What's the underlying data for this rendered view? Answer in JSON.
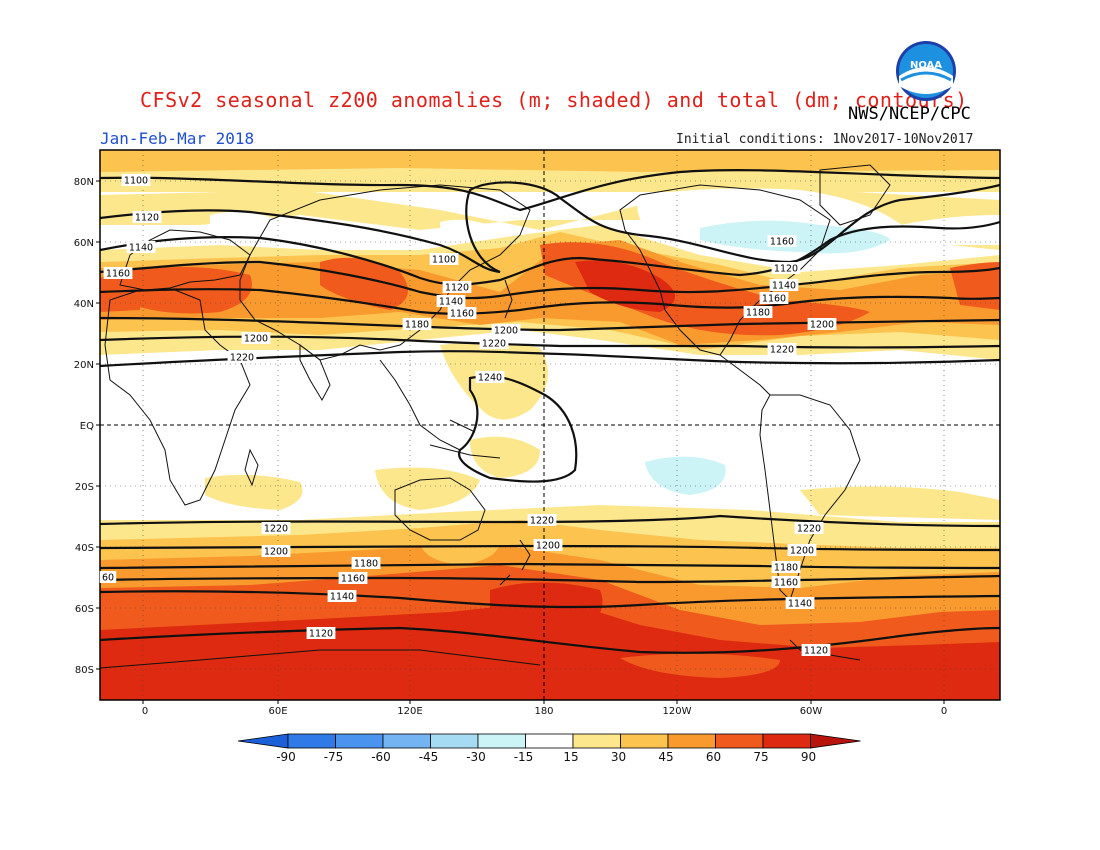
{
  "header": {
    "title": "CFSv2 seasonal z200 anomalies (m; shaded) and total (dm; contours)",
    "agency": "NWS/NCEP/CPC",
    "period": "Jan-Feb-Mar 2018",
    "initial_conditions": "Initial conditions: 1Nov2017-10Nov2017",
    "logo_text": "NOAA"
  },
  "map": {
    "lat_labels": [
      "80N",
      "60N",
      "40N",
      "20N",
      "EQ",
      "20S",
      "40S",
      "60S",
      "80S"
    ],
    "lon_labels": [
      "0",
      "60E",
      "120E",
      "180",
      "120W",
      "60W",
      "0"
    ],
    "contour_labels": [
      "1100",
      "1120",
      "1140",
      "1160",
      "1100",
      "1120",
      "1140",
      "1160",
      "1180",
      "1200",
      "1220",
      "1200",
      "1220",
      "1160",
      "1120",
      "1140",
      "1160",
      "1180",
      "1200",
      "1220",
      "1240",
      "1220",
      "1200",
      "1180",
      "1160",
      "1140",
      "1120",
      "60",
      "1220",
      "1200",
      "1220",
      "1200",
      "1180",
      "1160",
      "1140",
      "1120"
    ]
  },
  "colorbar": {
    "labels": [
      "-90",
      "-75",
      "-60",
      "-45",
      "-30",
      "-15",
      "15",
      "30",
      "45",
      "60",
      "75",
      "90"
    ],
    "colors": [
      "#1b5fd9",
      "#2f7ae6",
      "#4a93ee",
      "#74b4f2",
      "#a6dcf3",
      "#ccf3f5",
      "#ffffff",
      "#fde78c",
      "#fcc34f",
      "#f99a2e",
      "#f05a1c",
      "#dd2a10",
      "#b8140c"
    ]
  }
}
